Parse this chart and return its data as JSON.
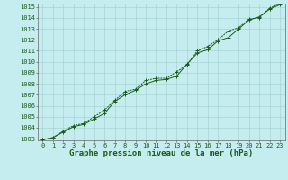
{
  "title": "Graphe pression niveau de la mer (hPa)",
  "xlim": [
    0,
    23
  ],
  "ylim": [
    1003,
    1015
  ],
  "yticks": [
    1003,
    1004,
    1005,
    1006,
    1007,
    1008,
    1009,
    1010,
    1011,
    1012,
    1013,
    1014,
    1015
  ],
  "xticks": [
    0,
    1,
    2,
    3,
    4,
    5,
    6,
    7,
    8,
    9,
    10,
    11,
    12,
    13,
    14,
    15,
    16,
    17,
    18,
    19,
    20,
    21,
    22,
    23
  ],
  "background_color": "#c5ecee",
  "grid_color": "#9ecfcf",
  "line_color": "#1a5c1a",
  "x_data": [
    0,
    1,
    2,
    3,
    4,
    5,
    6,
    7,
    8,
    9,
    10,
    11,
    12,
    13,
    14,
    15,
    16,
    17,
    18,
    19,
    20,
    21,
    22,
    23
  ],
  "y_data1": [
    1002.9,
    1003.1,
    1003.6,
    1004.1,
    1004.3,
    1004.8,
    1005.3,
    1006.4,
    1007.0,
    1007.4,
    1008.0,
    1008.3,
    1008.4,
    1008.7,
    1009.8,
    1010.8,
    1011.1,
    1011.9,
    1012.2,
    1013.0,
    1013.8,
    1014.1,
    1014.8,
    1015.2
  ],
  "y_data2": [
    1002.9,
    1003.1,
    1003.7,
    1004.2,
    1004.4,
    1005.0,
    1005.6,
    1006.5,
    1007.3,
    1007.5,
    1008.3,
    1008.5,
    1008.5,
    1009.1,
    1009.7,
    1011.0,
    1011.4,
    1012.0,
    1012.8,
    1013.1,
    1013.9,
    1014.0,
    1014.9,
    1015.3
  ],
  "title_fontsize": 6.5,
  "tick_fontsize": 5,
  "title_color": "#1a5c1a",
  "border_color": "#666666"
}
